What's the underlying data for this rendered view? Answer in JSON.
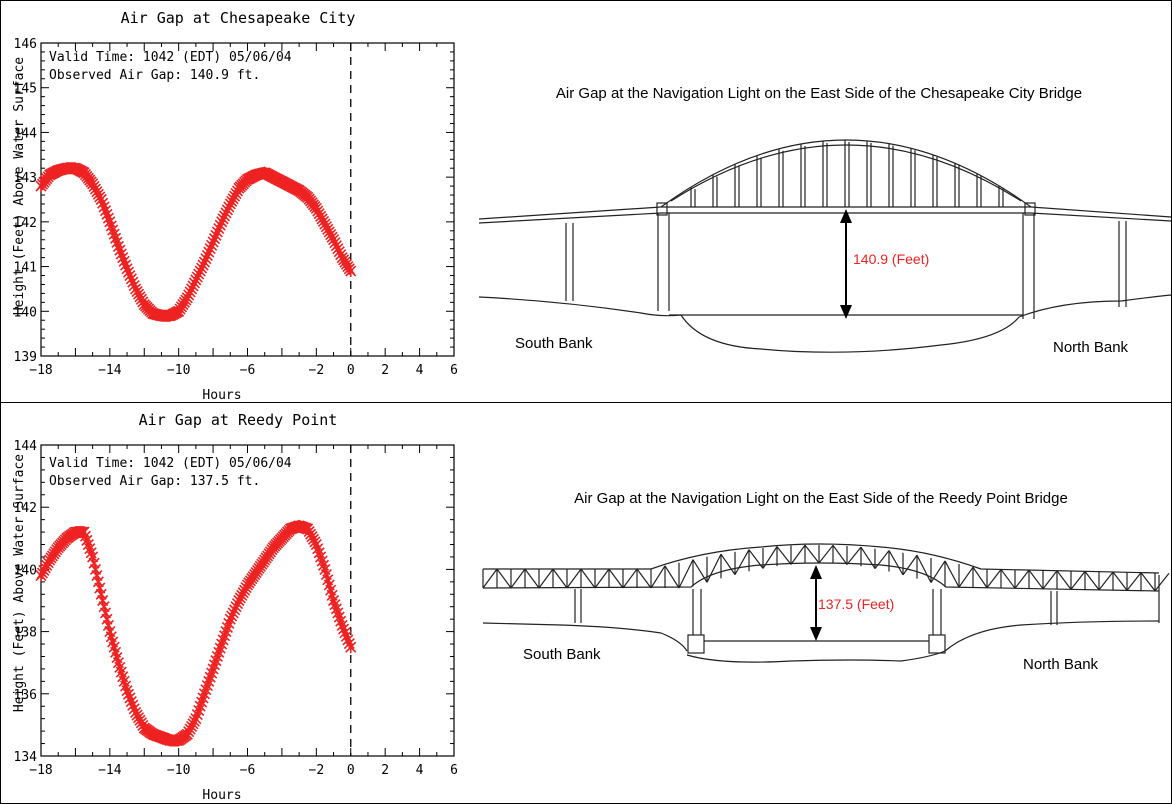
{
  "chart_data": [
    {
      "type": "scatter",
      "title": "Air Gap at Chesapeake City",
      "xlabel": "Hours",
      "ylabel": "Height (Feet) Above Water Surface",
      "xlim": [
        -18,
        6
      ],
      "ylim": [
        139,
        146
      ],
      "xticks": [
        -18,
        -14,
        -10,
        -6,
        -2,
        0,
        2,
        4,
        6
      ],
      "yticks": [
        139,
        140,
        141,
        142,
        143,
        144,
        145,
        146
      ],
      "annotations": [
        "Valid Time: 1042 (EDT) 05/06/04",
        "Observed Air Gap: 140.9 ft."
      ],
      "marker_color": "#ee2222",
      "current_time_line": 0,
      "series": [
        {
          "x": [
            -18,
            -17.5,
            -17,
            -16.5,
            -16,
            -15.5,
            -15,
            -14.5,
            -14,
            -13.5,
            -13,
            -12.5,
            -12,
            -11.5,
            -11,
            -10.5,
            -10,
            -9.5,
            -9,
            -8.5,
            -8,
            -7.5,
            -7,
            -6.5,
            -6,
            -5.5,
            -5,
            -4.5,
            -4,
            -3.5,
            -3,
            -2.5,
            -2,
            -1.5,
            -1,
            -0.5,
            0
          ],
          "y": [
            142.8,
            143.05,
            143.15,
            143.2,
            143.2,
            143.1,
            142.85,
            142.5,
            142.0,
            141.45,
            140.95,
            140.5,
            140.15,
            139.95,
            139.9,
            139.9,
            140.0,
            140.3,
            140.7,
            141.1,
            141.55,
            142.0,
            142.4,
            142.75,
            142.95,
            143.05,
            143.1,
            143.0,
            142.9,
            142.8,
            142.7,
            142.55,
            142.3,
            141.95,
            141.6,
            141.2,
            140.9
          ]
        }
      ]
    },
    {
      "type": "scatter",
      "title": "Air Gap at Reedy Point",
      "xlabel": "Hours",
      "ylabel": "Height (Feet) Above Water Surface",
      "xlim": [
        -18,
        6
      ],
      "ylim": [
        134,
        144
      ],
      "xticks": [
        -18,
        -14,
        -10,
        -6,
        -2,
        0,
        2,
        4,
        6
      ],
      "yticks": [
        134,
        136,
        138,
        140,
        142,
        144
      ],
      "annotations": [
        "Valid Time: 1042 (EDT) 05/06/04",
        "Observed Air Gap: 137.5 ft."
      ],
      "marker_color": "#ee2222",
      "current_time_line": 0,
      "series": [
        {
          "x": [
            -18,
            -17.5,
            -17,
            -16.5,
            -16,
            -15.5,
            -15,
            -14.5,
            -14,
            -13.5,
            -13,
            -12.5,
            -12,
            -11.5,
            -11,
            -10.5,
            -10,
            -9.5,
            -9,
            -8.5,
            -8,
            -7.5,
            -7,
            -6.5,
            -6,
            -5.5,
            -5,
            -4.5,
            -4,
            -3.5,
            -3,
            -2.5,
            -2,
            -1.5,
            -1,
            -0.5,
            0
          ],
          "y": [
            139.8,
            140.3,
            140.7,
            141.0,
            141.2,
            141.2,
            140.4,
            139.2,
            138.0,
            137.0,
            136.1,
            135.4,
            134.9,
            134.7,
            134.6,
            134.5,
            134.5,
            134.7,
            135.2,
            136.0,
            136.8,
            137.6,
            138.4,
            139.0,
            139.5,
            139.9,
            140.3,
            140.7,
            141.0,
            141.3,
            141.4,
            141.3,
            140.8,
            140.0,
            139.0,
            138.2,
            137.5
          ]
        }
      ]
    }
  ],
  "diagrams": [
    {
      "title": "Air Gap at the Navigation Light on the East Side of the Chesapeake City Bridge",
      "gap_label": "140.9 (Feet)",
      "south_label": "South Bank",
      "north_label": "North Bank"
    },
    {
      "title": "Air Gap at the Navigation Light on the East Side of the Reedy Point Bridge",
      "gap_label": "137.5 (Feet)",
      "south_label": "South Bank",
      "north_label": "North Bank"
    }
  ]
}
